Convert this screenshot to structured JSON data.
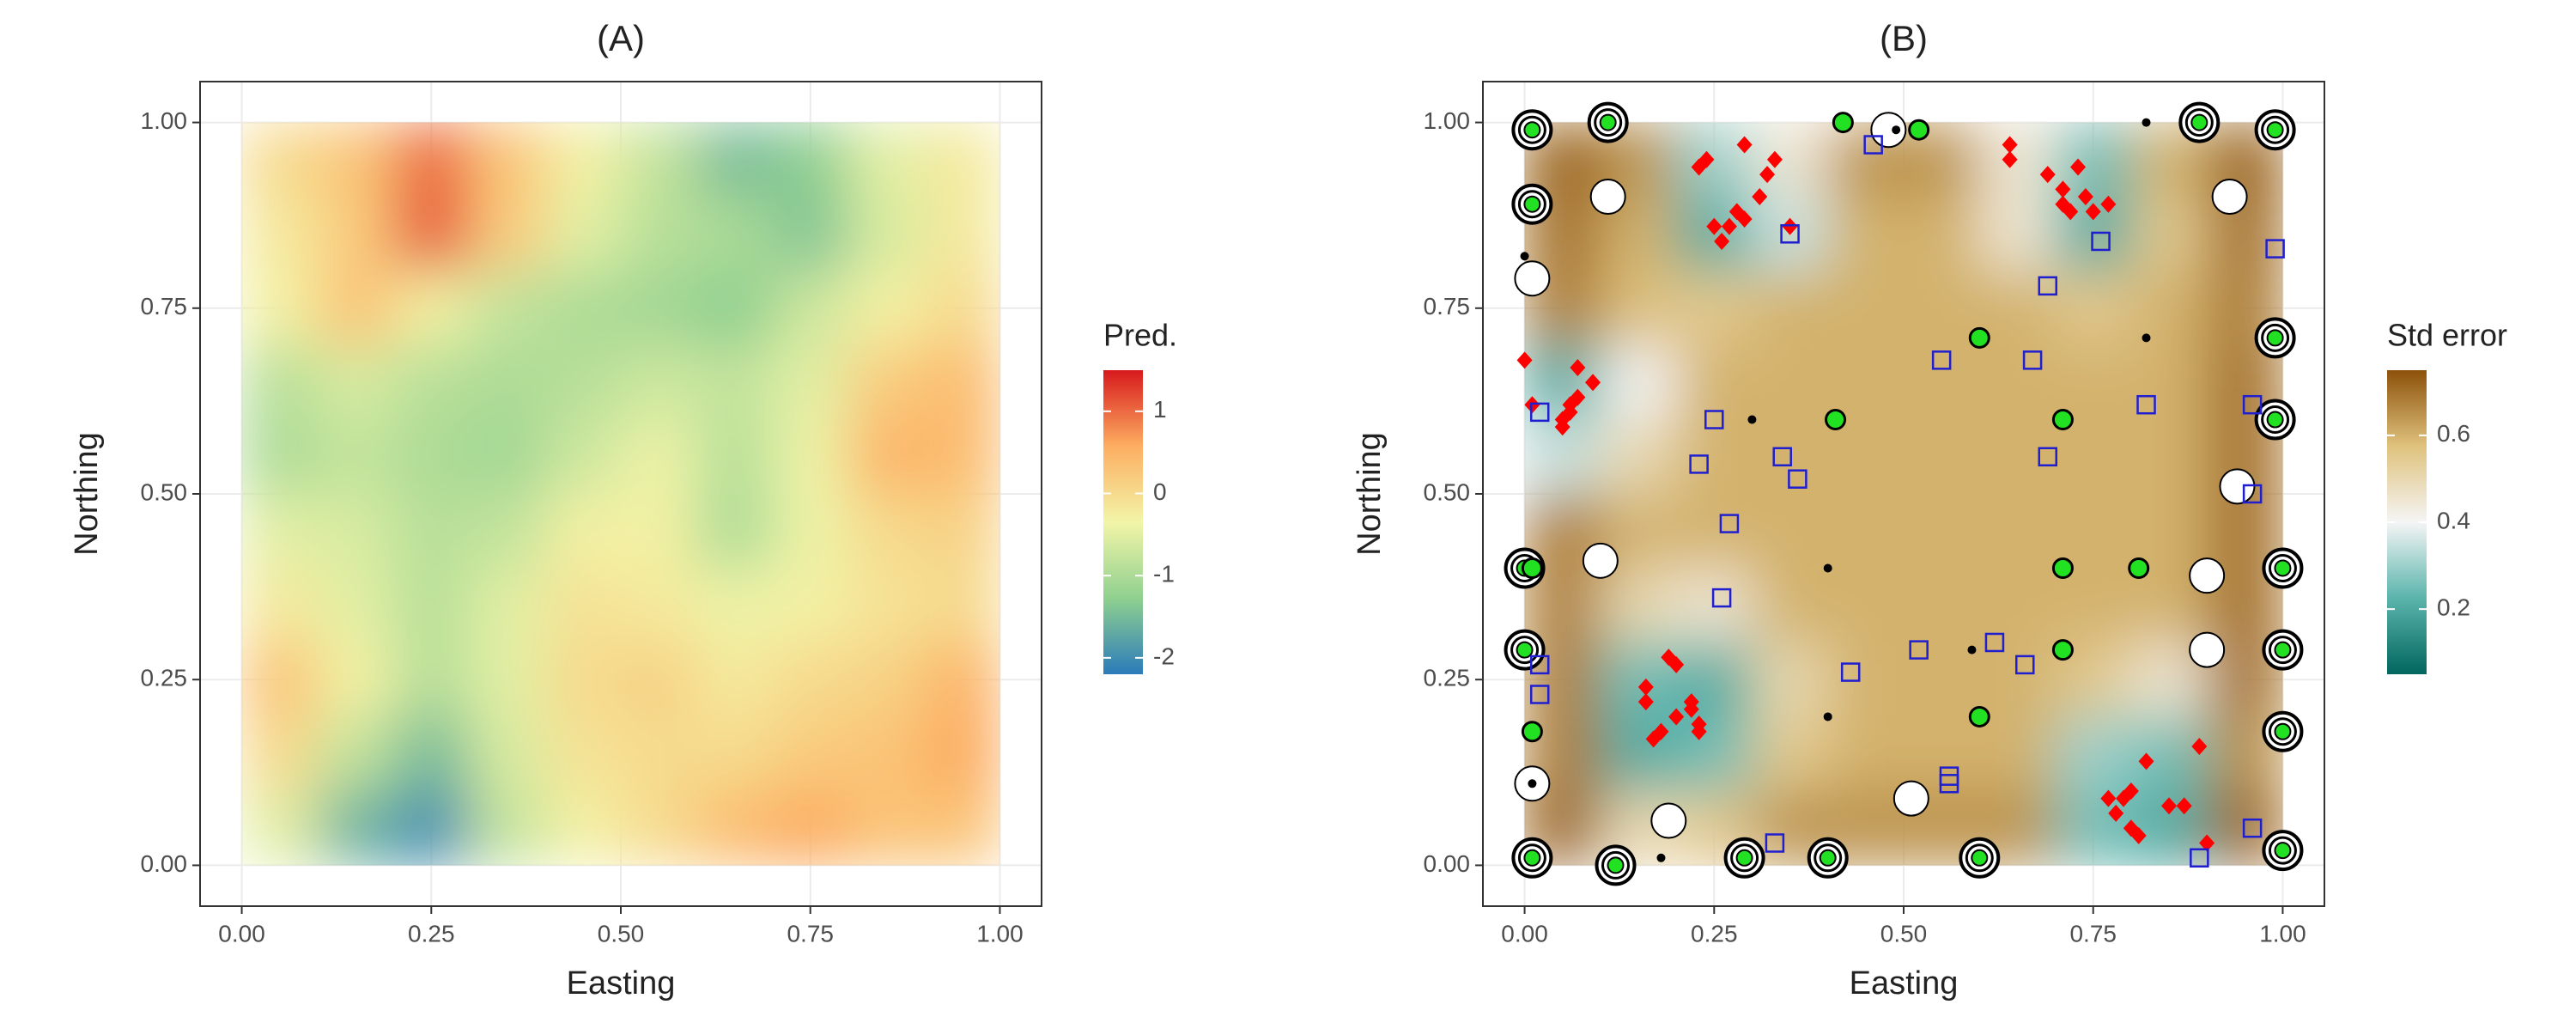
{
  "chart_data": [
    {
      "type": "heatmap",
      "title": "(A)",
      "x_label": "Easting",
      "y_label": "Northing",
      "legend_title": "Pred.",
      "x": [
        0.05,
        0.15,
        0.25,
        0.35,
        0.45,
        0.55,
        0.65,
        0.75,
        0.85,
        0.95
      ],
      "y": [
        0.95,
        0.85,
        0.75,
        0.65,
        0.55,
        0.45,
        0.35,
        0.25,
        0.15,
        0.05
      ],
      "z": [
        [
          0.0,
          0.3,
          1.0,
          0.3,
          -0.3,
          -0.8,
          -1.5,
          -1.3,
          -0.5,
          -0.2
        ],
        [
          -0.2,
          0.2,
          1.1,
          0.2,
          -0.5,
          -0.9,
          -1.0,
          -1.4,
          -0.6,
          -0.2
        ],
        [
          -0.3,
          0.3,
          -0.3,
          -0.8,
          -1.0,
          -1.1,
          -1.3,
          -0.7,
          -0.3,
          0.0
        ],
        [
          -0.9,
          -0.6,
          -0.9,
          -1.0,
          -0.9,
          -0.7,
          -0.8,
          -0.5,
          0.2,
          0.4
        ],
        [
          -1.0,
          -0.8,
          -1.0,
          -1.1,
          -0.7,
          -0.4,
          -0.9,
          -0.4,
          0.5,
          0.4
        ],
        [
          -0.5,
          -0.6,
          -0.9,
          -0.8,
          -0.3,
          -0.3,
          -1.0,
          -0.4,
          0.0,
          0.1
        ],
        [
          -0.2,
          -0.5,
          -0.9,
          -0.5,
          -0.1,
          -0.2,
          -0.4,
          -0.3,
          -0.1,
          0.0
        ],
        [
          0.3,
          -0.3,
          -0.9,
          -0.5,
          0.0,
          0.1,
          -0.2,
          0.0,
          0.1,
          0.5
        ],
        [
          0.0,
          -0.8,
          -1.5,
          -0.6,
          -0.1,
          0.0,
          0.0,
          0.2,
          0.3,
          0.6
        ],
        [
          -0.5,
          -1.6,
          -2.0,
          -0.8,
          -0.3,
          0.0,
          0.4,
          0.6,
          0.3,
          0.3
        ]
      ],
      "colorscale": [
        "#2b7bba",
        "#8fd08f",
        "#f2f5a8",
        "#fdae61",
        "#d7191c"
      ],
      "zlim": [
        -2.2,
        1.5
      ],
      "zticks": [
        -2,
        -1,
        0,
        1
      ],
      "xlim": [
        -0.055,
        1.055
      ],
      "ylim": [
        -0.055,
        1.055
      ],
      "xticks": [
        {
          "value": 0,
          "label": "0.00"
        },
        {
          "value": 0.25,
          "label": "0.25"
        },
        {
          "value": 0.5,
          "label": "0.50"
        },
        {
          "value": 0.75,
          "label": "0.75"
        },
        {
          "value": 1,
          "label": "1.00"
        }
      ],
      "yticks": [
        {
          "value": 0,
          "label": "0.00"
        },
        {
          "value": 0.25,
          "label": "0.25"
        },
        {
          "value": 0.5,
          "label": "0.50"
        },
        {
          "value": 0.75,
          "label": "0.75"
        },
        {
          "value": 1,
          "label": "1.00"
        }
      ],
      "grid": true
    },
    {
      "type": "heatmap",
      "title": "(B)",
      "x_label": "Easting",
      "y_label": "Northing",
      "legend_title": "Std error",
      "x": [
        0.05,
        0.15,
        0.25,
        0.35,
        0.45,
        0.55,
        0.65,
        0.75,
        0.85,
        0.95
      ],
      "y": [
        0.95,
        0.85,
        0.75,
        0.65,
        0.55,
        0.45,
        0.35,
        0.25,
        0.15,
        0.05
      ],
      "z": [
        [
          0.72,
          0.65,
          0.3,
          0.45,
          0.65,
          0.65,
          0.45,
          0.25,
          0.6,
          0.72
        ],
        [
          0.7,
          0.6,
          0.2,
          0.35,
          0.6,
          0.6,
          0.45,
          0.2,
          0.55,
          0.7
        ],
        [
          0.68,
          0.58,
          0.55,
          0.6,
          0.6,
          0.6,
          0.6,
          0.55,
          0.6,
          0.68
        ],
        [
          0.2,
          0.4,
          0.6,
          0.6,
          0.6,
          0.6,
          0.6,
          0.6,
          0.6,
          0.7
        ],
        [
          0.35,
          0.5,
          0.6,
          0.6,
          0.6,
          0.6,
          0.6,
          0.6,
          0.6,
          0.7
        ],
        [
          0.68,
          0.6,
          0.6,
          0.6,
          0.6,
          0.6,
          0.6,
          0.6,
          0.6,
          0.7
        ],
        [
          0.68,
          0.5,
          0.45,
          0.6,
          0.6,
          0.6,
          0.6,
          0.6,
          0.6,
          0.7
        ],
        [
          0.68,
          0.25,
          0.2,
          0.5,
          0.6,
          0.6,
          0.6,
          0.55,
          0.45,
          0.7
        ],
        [
          0.68,
          0.2,
          0.25,
          0.55,
          0.6,
          0.6,
          0.6,
          0.3,
          0.25,
          0.65
        ],
        [
          0.72,
          0.5,
          0.55,
          0.65,
          0.65,
          0.65,
          0.65,
          0.25,
          0.2,
          0.72
        ]
      ],
      "colorscale": [
        "#01665e",
        "#5ab4ac",
        "#f5f5f5",
        "#dfc27d",
        "#8c510a"
      ],
      "zlim": [
        0.05,
        0.75
      ],
      "zticks": [
        0.2,
        0.4,
        0.6
      ],
      "xlim": [
        -0.055,
        1.055
      ],
      "ylim": [
        -0.055,
        1.055
      ],
      "xticks": [
        {
          "value": 0,
          "label": "0.00"
        },
        {
          "value": 0.25,
          "label": "0.25"
        },
        {
          "value": 0.5,
          "label": "0.50"
        },
        {
          "value": 0.75,
          "label": "0.75"
        },
        {
          "value": 1,
          "label": "1.00"
        }
      ],
      "yticks": [
        {
          "value": 0,
          "label": "0.00"
        },
        {
          "value": 0.25,
          "label": "0.25"
        },
        {
          "value": 0.5,
          "label": "0.50"
        },
        {
          "value": 0.75,
          "label": "0.75"
        },
        {
          "value": 1,
          "label": "1.00"
        }
      ],
      "grid": true,
      "points": [
        {
          "marker": "white-circle",
          "x": [
            0.11,
            0.93,
            0.48,
            0.01,
            0.94,
            0.1,
            0.9,
            0.9,
            0.01,
            0.19,
            0.51
          ],
          "y": [
            0.9,
            0.9,
            0.99,
            0.79,
            0.51,
            0.41,
            0.39,
            0.29,
            0.11,
            0.06,
            0.09
          ]
        },
        {
          "marker": "ringed-circle",
          "x": [
            0.01,
            0.11,
            0.89,
            0.99,
            0.01,
            0.99,
            0.99,
            0.0,
            1.0,
            0.0,
            1.0,
            1.0,
            0.01,
            0.12,
            0.29,
            0.4,
            0.6,
            1.0
          ],
          "y": [
            0.99,
            1.0,
            1.0,
            0.99,
            0.89,
            0.71,
            0.6,
            0.4,
            0.4,
            0.29,
            0.29,
            0.18,
            0.01,
            0.0,
            0.01,
            0.01,
            0.01,
            0.02
          ]
        },
        {
          "marker": "green-dot",
          "x": [
            0.42,
            0.52,
            0.6,
            0.41,
            0.71,
            0.71,
            0.81,
            0.71,
            0.6,
            0.01,
            0.01
          ],
          "y": [
            1.0,
            0.99,
            0.71,
            0.6,
            0.6,
            0.4,
            0.4,
            0.29,
            0.2,
            0.18,
            0.4
          ]
        },
        {
          "marker": "black-dot",
          "x": [
            0.49,
            0.82,
            0.0,
            0.82,
            0.3,
            0.4,
            0.4,
            0.59,
            0.18,
            0.01
          ],
          "y": [
            0.99,
            1.0,
            0.82,
            0.71,
            0.6,
            0.4,
            0.2,
            0.29,
            0.01,
            0.11
          ]
        },
        {
          "marker": "red-diamond",
          "x": [
            0.23,
            0.24,
            0.27,
            0.28,
            0.29,
            0.26,
            0.31,
            0.32,
            0.33,
            0.29,
            0.25,
            0.35,
            0.64,
            0.64,
            0.69,
            0.71,
            0.72,
            0.73,
            0.74,
            0.75,
            0.77,
            0.71,
            0.0,
            0.01,
            0.05,
            0.06,
            0.06,
            0.07,
            0.07,
            0.09,
            0.05,
            0.16,
            0.16,
            0.19,
            0.2,
            0.2,
            0.18,
            0.22,
            0.22,
            0.23,
            0.23,
            0.17,
            0.77,
            0.78,
            0.79,
            0.8,
            0.81,
            0.82,
            0.85,
            0.87,
            0.89,
            0.9,
            0.8
          ],
          "y": [
            0.94,
            0.95,
            0.86,
            0.88,
            0.87,
            0.84,
            0.9,
            0.93,
            0.95,
            0.97,
            0.86,
            0.86,
            0.97,
            0.95,
            0.93,
            0.89,
            0.88,
            0.94,
            0.9,
            0.88,
            0.89,
            0.91,
            0.68,
            0.62,
            0.6,
            0.61,
            0.62,
            0.63,
            0.67,
            0.65,
            0.59,
            0.24,
            0.22,
            0.28,
            0.27,
            0.2,
            0.18,
            0.22,
            0.21,
            0.19,
            0.18,
            0.17,
            0.09,
            0.07,
            0.09,
            0.05,
            0.04,
            0.14,
            0.08,
            0.08,
            0.16,
            0.03,
            0.1
          ]
        },
        {
          "marker": "blue-square",
          "x": [
            0.46,
            0.35,
            0.76,
            0.69,
            0.55,
            0.67,
            0.02,
            0.25,
            0.82,
            0.96,
            0.23,
            0.34,
            0.36,
            0.69,
            0.27,
            0.96,
            0.26,
            0.62,
            0.52,
            0.66,
            0.02,
            0.02,
            0.43,
            0.56,
            0.56,
            0.33,
            0.89,
            0.96,
            0.99
          ],
          "y": [
            0.97,
            0.85,
            0.84,
            0.78,
            0.68,
            0.68,
            0.61,
            0.6,
            0.62,
            0.62,
            0.54,
            0.55,
            0.52,
            0.55,
            0.46,
            0.5,
            0.36,
            0.3,
            0.29,
            0.27,
            0.27,
            0.23,
            0.26,
            0.12,
            0.11,
            0.03,
            0.01,
            0.05,
            0.83
          ]
        }
      ]
    }
  ]
}
